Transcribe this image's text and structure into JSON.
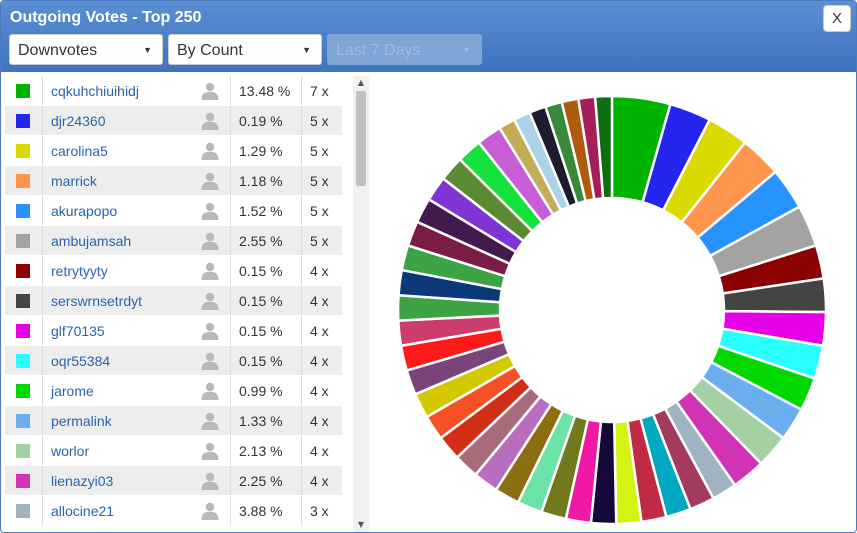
{
  "header": {
    "title": "Outgoing Votes - Top 250",
    "close_label": "X"
  },
  "filters": {
    "type": "Downvotes",
    "sort": "By Count",
    "period": "Last 7 Days"
  },
  "icons": {
    "caret": "chevron-down-icon",
    "user": "user-icon"
  },
  "voters": [
    {
      "name": "cqkuhchiuihidj",
      "percent": "13.48 %",
      "count": "7 x",
      "color": "#00b300"
    },
    {
      "name": "djr24360",
      "percent": "0.19 %",
      "count": "5 x",
      "color": "#2525f0"
    },
    {
      "name": "carolina5",
      "percent": "1.29 %",
      "count": "5 x",
      "color": "#dada00"
    },
    {
      "name": "marrick",
      "percent": "1.18 %",
      "count": "5 x",
      "color": "#ff944d"
    },
    {
      "name": "akurapopo",
      "percent": "1.52 %",
      "count": "5 x",
      "color": "#2893ff"
    },
    {
      "name": "ambujamsah",
      "percent": "2.55 %",
      "count": "5 x",
      "color": "#a3a3a3"
    },
    {
      "name": "retrytyyty",
      "percent": "0.15 %",
      "count": "4 x",
      "color": "#8b0000"
    },
    {
      "name": "serswrnsetrdyt",
      "percent": "0.15 %",
      "count": "4 x",
      "color": "#444444"
    },
    {
      "name": "glf70135",
      "percent": "0.15 %",
      "count": "4 x",
      "color": "#e500e5"
    },
    {
      "name": "oqr55384",
      "percent": "0.15 %",
      "count": "4 x",
      "color": "#29ffff"
    },
    {
      "name": "jarome",
      "percent": "0.99 %",
      "count": "4 x",
      "color": "#00d800"
    },
    {
      "name": "permalink",
      "percent": "1.33 %",
      "count": "4 x",
      "color": "#6aaef0"
    },
    {
      "name": "worlor",
      "percent": "2.13 %",
      "count": "4 x",
      "color": "#a3d1a3"
    },
    {
      "name": "lienazyi03",
      "percent": "2.25 %",
      "count": "4 x",
      "color": "#d034b4"
    },
    {
      "name": "allocine21",
      "percent": "3.88 %",
      "count": "3 x",
      "color": "#9fb3c0"
    }
  ],
  "chart_data": {
    "type": "pie",
    "style": "donut",
    "labels": [
      "cqkuhchiuihidj",
      "djr24360",
      "carolina5",
      "marrick",
      "akurapopo",
      "ambujamsah",
      "retrytyyty",
      "serswrnsetrdyt",
      "glf70135",
      "oqr55384",
      "jarome",
      "permalink",
      "worlor",
      "lienazyi03",
      "allocine21"
    ],
    "values": [
      7,
      5,
      5,
      5,
      5,
      5,
      4,
      4,
      4,
      4,
      4,
      4,
      4,
      4,
      3
    ],
    "colors": [
      "#00b300",
      "#2525f0",
      "#dada00",
      "#ff944d",
      "#2893ff",
      "#a3a3a3",
      "#8b0000",
      "#444444",
      "#e500e5",
      "#29ffff",
      "#00d800",
      "#6aaef0",
      "#a3d1a3",
      "#d034b4",
      "#9fb3c0"
    ],
    "more_values": [
      3,
      3,
      3,
      3,
      3,
      3,
      3,
      3,
      3,
      3,
      3,
      3,
      3,
      3,
      3,
      3,
      3,
      3,
      3,
      3,
      3,
      3,
      3,
      3,
      3,
      3,
      2,
      2,
      2,
      2,
      2,
      2,
      2
    ],
    "more_colors": [
      "#a33b5e",
      "#00a9bf",
      "#c02a45",
      "#d4f213",
      "#15093b",
      "#f019a4",
      "#707a1d",
      "#6be3a6",
      "#8a6e10",
      "#b86ebd",
      "#a86b7b",
      "#d12e17",
      "#f55124",
      "#d4c900",
      "#7a447a",
      "#ff1a1a",
      "#cc3d6e",
      "#3ea344",
      "#0a3878",
      "#3ea344",
      "#7a1c46",
      "#421a4d",
      "#7f35d4",
      "#5a8a31",
      "#16e03b",
      "#c75ed6",
      "#c2ac56",
      "#aad2e8",
      "#1e1b2e",
      "#378a37",
      "#b05a0f",
      "#a61e57",
      "#0f6e0f"
    ]
  }
}
